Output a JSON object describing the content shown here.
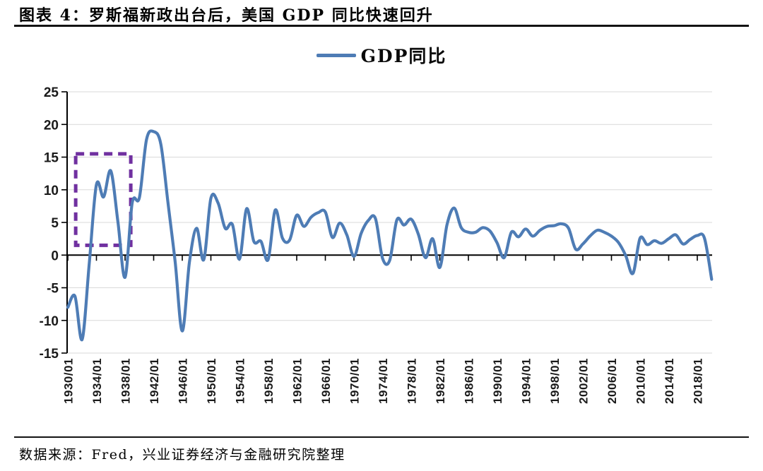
{
  "figure": {
    "title": "图表 4：罗斯福新政出台后，美国 GDP 同比快速回升",
    "source": "数据来源：Fred，兴业证券经济与金融研究院整理"
  },
  "legend": {
    "label": "GDP同比"
  },
  "colors": {
    "line": "#4E7CB5",
    "highlight_box": "#7030A0",
    "grid": "#D9D9D9",
    "axis": "#000000",
    "tick_text": "#1A1A1A"
  },
  "chart_data": {
    "type": "line",
    "title": "GDP同比",
    "xlabel": "",
    "ylabel": "",
    "ylim": [
      -15,
      25
    ],
    "xlim_years": [
      1930,
      2020
    ],
    "grid": "horizontal",
    "legend_position": "top-center",
    "y_ticks": [
      25,
      20,
      15,
      10,
      5,
      0,
      -5,
      -10,
      -15
    ],
    "x_tick_labels": [
      "1930/01",
      "1934/01",
      "1938/01",
      "1942/01",
      "1946/01",
      "1950/01",
      "1954/01",
      "1958/01",
      "1962/01",
      "1966/01",
      "1970/01",
      "1974/01",
      "1978/01",
      "1982/01",
      "1986/01",
      "1990/01",
      "1994/01",
      "1998/01",
      "2002/01",
      "2006/01",
      "2010/01",
      "2014/01",
      "2018/01"
    ],
    "series": [
      {
        "name": "GDP同比",
        "x": [
          1930,
          1931,
          1932,
          1933,
          1934,
          1935,
          1936,
          1937,
          1938,
          1939,
          1940,
          1941,
          1942,
          1943,
          1944,
          1945,
          1946,
          1947,
          1948,
          1949,
          1950,
          1951,
          1952,
          1953,
          1954,
          1955,
          1956,
          1957,
          1958,
          1959,
          1960,
          1961,
          1962,
          1963,
          1964,
          1965,
          1966,
          1967,
          1968,
          1969,
          1970,
          1971,
          1972,
          1973,
          1974,
          1975,
          1976,
          1977,
          1978,
          1979,
          1980,
          1981,
          1982,
          1983,
          1984,
          1985,
          1986,
          1987,
          1988,
          1989,
          1990,
          1991,
          1992,
          1993,
          1994,
          1995,
          1996,
          1997,
          1998,
          1999,
          2000,
          2001,
          2002,
          2003,
          2004,
          2005,
          2006,
          2007,
          2008,
          2009,
          2010,
          2011,
          2012,
          2013,
          2014,
          2015,
          2016,
          2017,
          2018,
          2019,
          2020
        ],
        "values": [
          -8.0,
          -6.3,
          -12.9,
          -1.2,
          10.8,
          8.9,
          12.9,
          5.1,
          -3.4,
          8.0,
          8.8,
          17.7,
          18.9,
          17.0,
          8.0,
          -1.0,
          -11.6,
          -1.1,
          4.1,
          -0.7,
          8.7,
          8.0,
          4.1,
          4.7,
          -0.6,
          7.1,
          2.1,
          2.1,
          -0.7,
          6.9,
          2.6,
          2.3,
          6.1,
          4.4,
          5.8,
          6.5,
          6.6,
          2.7,
          4.9,
          3.1,
          -0.2,
          3.3,
          5.3,
          5.6,
          -0.5,
          -0.8,
          5.4,
          4.6,
          5.5,
          3.2,
          -0.4,
          2.5,
          -1.9,
          4.6,
          7.2,
          4.2,
          3.5,
          3.5,
          4.2,
          3.7,
          1.9,
          -0.4,
          3.5,
          2.8,
          4.0,
          2.9,
          3.8,
          4.4,
          4.5,
          4.8,
          4.1,
          0.9,
          1.7,
          2.9,
          3.8,
          3.5,
          2.9,
          1.9,
          -0.1,
          -2.8,
          2.6,
          1.6,
          2.2,
          1.8,
          2.5,
          3.1,
          1.7,
          2.4,
          3.0,
          2.6,
          -3.7
        ]
      }
    ],
    "annotation_box": {
      "shape": "dashed-rectangle",
      "color": "#7030A0",
      "x_from_year": 1931.1,
      "x_to_year": 1938.8,
      "y_from": 1.5,
      "y_to": 15.5
    }
  }
}
